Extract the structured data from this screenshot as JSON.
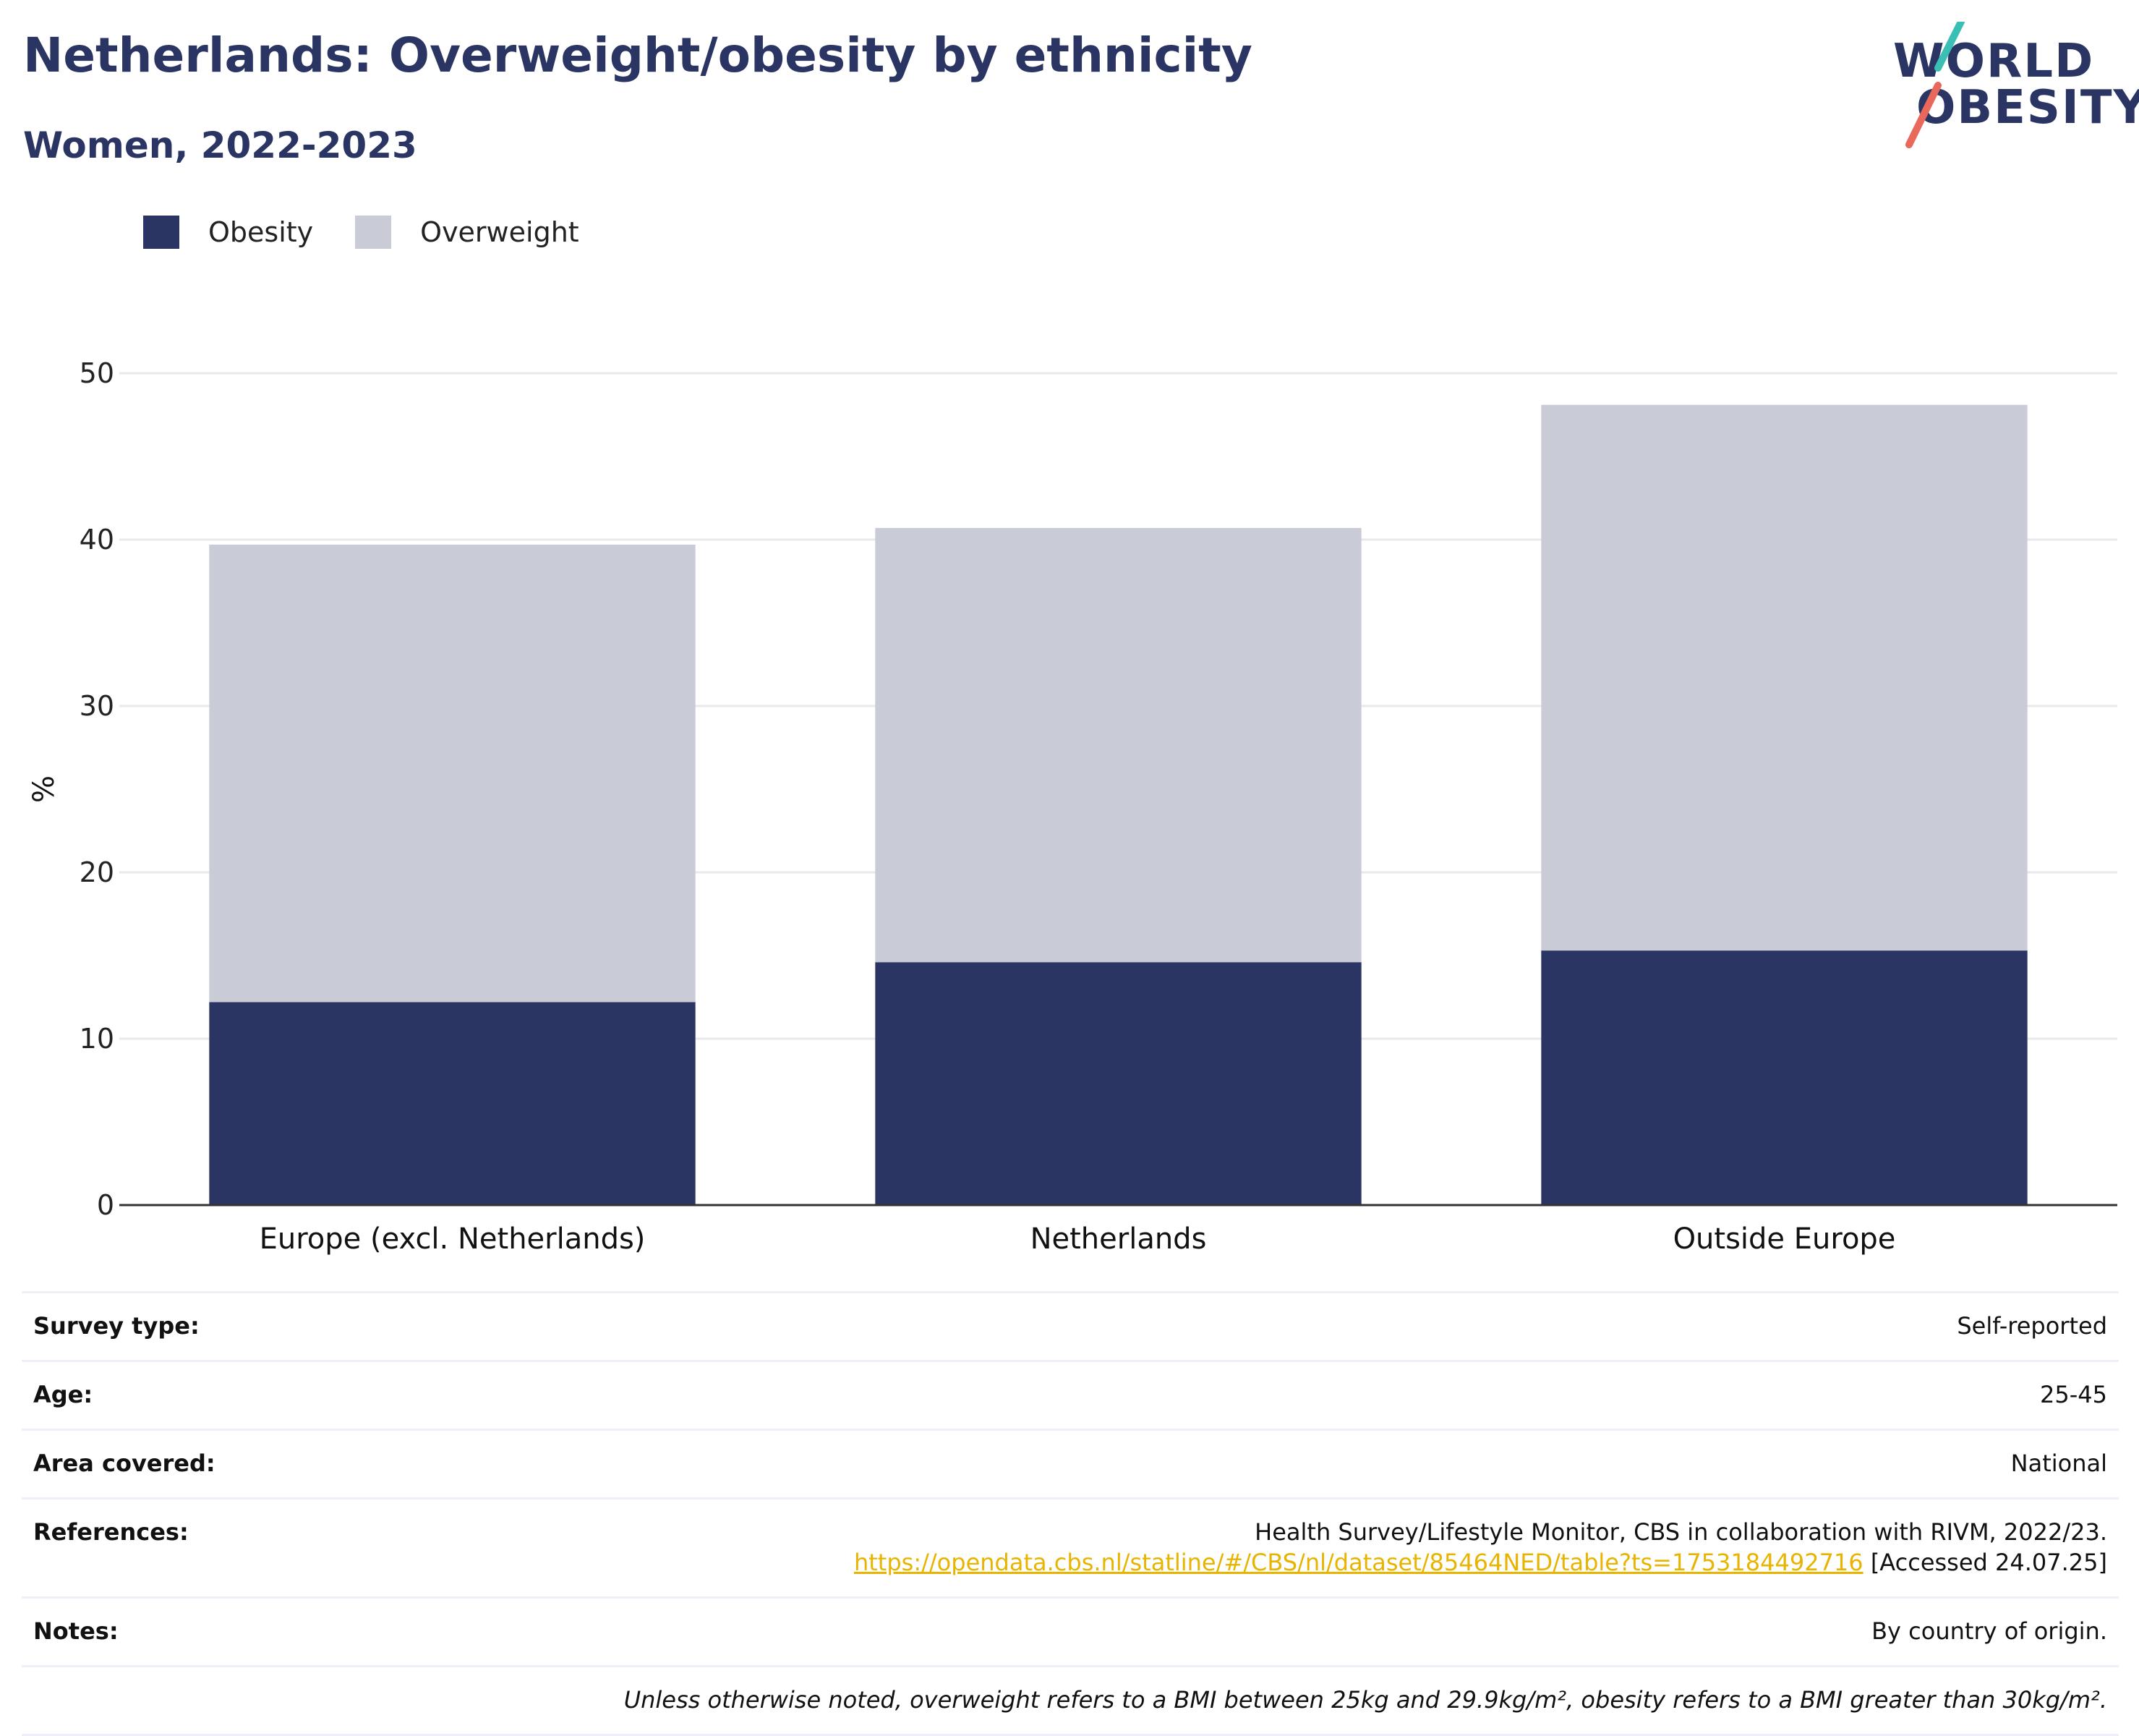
{
  "header": {
    "title": "Netherlands: Overweight/obesity by ethnicity",
    "subtitle": "Women, 2022-2023"
  },
  "logo": {
    "line1": "WORLD",
    "line2": "OBESITY",
    "colors": {
      "text": "#2a3563",
      "slash_top": "#3bbfb5",
      "slash_bottom": "#e8695b"
    }
  },
  "colors": {
    "obesity": "#2a3563",
    "overweight": "#c9cbd6",
    "grid": "#e8e9ef",
    "axis": "#333333",
    "link": "#e8b400"
  },
  "chart_data": {
    "type": "bar",
    "stacked": true,
    "categories": [
      "Europe (excl. Netherlands)",
      "Netherlands",
      "Outside Europe"
    ],
    "series": [
      {
        "name": "Obesity",
        "values": [
          12.2,
          14.6,
          15.3
        ],
        "color": "#2a3563"
      },
      {
        "name": "Overweight",
        "values": [
          27.5,
          26.1,
          32.8
        ],
        "color": "#c9cbd6"
      }
    ],
    "ylabel": "%",
    "xlabel": "",
    "ylim": [
      0,
      50
    ],
    "yticks": [
      "0",
      "10",
      "20",
      "30",
      "40",
      "50"
    ],
    "grid": true,
    "legend_position": "top-left"
  },
  "meta": {
    "survey_type_label": "Survey type:",
    "survey_type_value": "Self-reported",
    "age_label": "Age:",
    "age_value": "25-45",
    "area_label": "Area covered:",
    "area_value": "National",
    "references_label": "References:",
    "references_text": "Health Survey/Lifestyle Monitor, CBS in collaboration with RIVM, 2022/23.",
    "references_link": "https://opendata.cbs.nl/statline/#/CBS/nl/dataset/85464NED/table?ts=1753184492716",
    "references_accessed": " [Accessed 24.07.25]",
    "notes_label": "Notes:",
    "notes_value": "By country of origin.",
    "footnote": "Unless otherwise noted, overweight refers to a BMI between 25kg and 29.9kg/m², obesity refers to a BMI greater than 30kg/m²."
  }
}
